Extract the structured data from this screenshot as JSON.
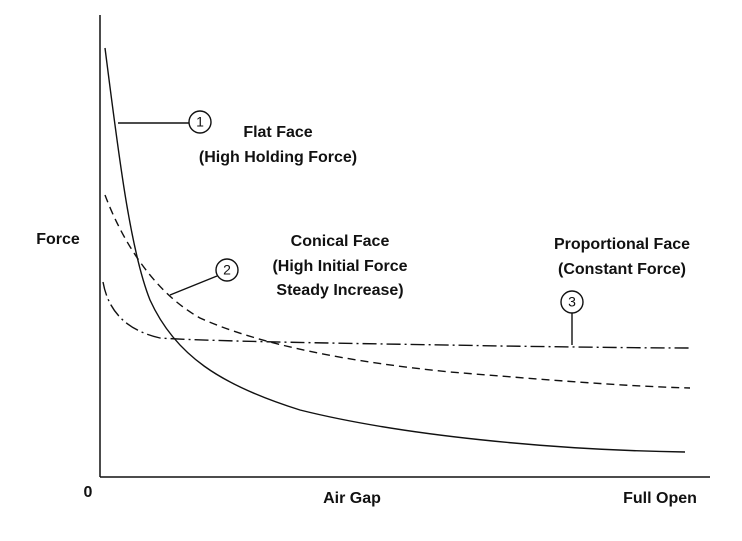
{
  "axes": {
    "y_label": "Force",
    "origin": "0",
    "x_label": "Air Gap",
    "x_end": "Full Open"
  },
  "curves": [
    {
      "marker": "1",
      "lines": [
        "Flat Face",
        "(High Holding Force)"
      ]
    },
    {
      "marker": "2",
      "lines": [
        "Conical Face",
        "(High Initial Force",
        "Steady Increase)"
      ]
    },
    {
      "marker": "3",
      "lines": [
        "Proportional Face",
        "(Constant Force)"
      ]
    }
  ]
}
